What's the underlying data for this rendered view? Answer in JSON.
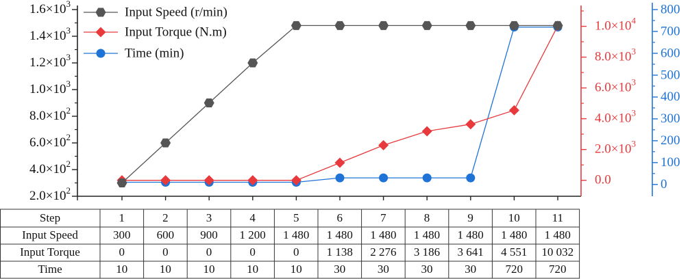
{
  "chart_data": {
    "type": "line",
    "categories": [
      "1",
      "2",
      "3",
      "4",
      "5",
      "6",
      "7",
      "8",
      "9",
      "10",
      "11"
    ],
    "series": [
      {
        "name": "Input Speed (r/min)",
        "axis": "left",
        "color": "#555555",
        "marker": "hexagon",
        "values": [
          300,
          600,
          900,
          1200,
          1480,
          1480,
          1480,
          1480,
          1480,
          1480,
          1480
        ]
      },
      {
        "name": "Input Torque (N.m)",
        "axis": "right1",
        "color": "#e8393c",
        "marker": "diamond",
        "values": [
          0,
          0,
          0,
          0,
          0,
          1138,
          2276,
          3186,
          3641,
          4551,
          10032
        ]
      },
      {
        "name": "Time (min)",
        "axis": "right2",
        "color": "#1f73d6",
        "marker": "circle",
        "values": [
          10,
          10,
          10,
          10,
          10,
          30,
          30,
          30,
          30,
          720,
          720
        ]
      }
    ],
    "left_axis": {
      "ylim": [
        200,
        1600
      ],
      "ticks": [
        200,
        400,
        600,
        800,
        1000,
        1200,
        1400,
        1600
      ],
      "tick_labels": [
        {
          "m": "2.0×10",
          "e": "2"
        },
        {
          "m": "4.0×10",
          "e": "2"
        },
        {
          "m": "6.0×10",
          "e": "2"
        },
        {
          "m": "8.0×10",
          "e": "2"
        },
        {
          "m": "1.0×10",
          "e": "3"
        },
        {
          "m": "1.2×10",
          "e": "3"
        },
        {
          "m": "1.4×10",
          "e": "3"
        },
        {
          "m": "1.6×10",
          "e": "3"
        }
      ]
    },
    "right1_axis": {
      "color": "#e8393c",
      "ylim": [
        -1036,
        11089
      ],
      "ticks": [
        0,
        2000,
        4000,
        6000,
        8000,
        10000
      ],
      "tick_labels": [
        {
          "m": "0.0",
          "e": ""
        },
        {
          "m": "2.0×10",
          "e": "3"
        },
        {
          "m": "4.0×10",
          "e": "3"
        },
        {
          "m": "6.0×10",
          "e": "3"
        },
        {
          "m": "8.0×10",
          "e": "3"
        },
        {
          "m": "1.0×10",
          "e": "4"
        }
      ]
    },
    "right2_axis": {
      "color": "#1f73d6",
      "ylim": [
        -54,
        800
      ],
      "ticks": [
        0,
        100,
        200,
        300,
        400,
        500,
        600,
        700,
        800
      ],
      "tick_labels": [
        "0",
        "100",
        "200",
        "300",
        "400",
        "500",
        "600",
        "700",
        "800"
      ]
    },
    "legend_position": "top-left",
    "table": {
      "header": [
        "Step",
        "1",
        "2",
        "3",
        "4",
        "5",
        "6",
        "7",
        "8",
        "9",
        "10",
        "11"
      ],
      "rows": [
        [
          "Input Speed",
          "300",
          "600",
          "900",
          "1 200",
          "1 480",
          "1 480",
          "1 480",
          "1 480",
          "1 480",
          "1 480",
          "1 480"
        ],
        [
          "Input Torque",
          "0",
          "0",
          "0",
          "0",
          "0",
          "1 138",
          "2 276",
          "3 186",
          "3 641",
          "4 551",
          "10 032"
        ],
        [
          "Time",
          "10",
          "10",
          "10",
          "10",
          "10",
          "30",
          "30",
          "30",
          "30",
          "720",
          "720"
        ]
      ]
    }
  }
}
